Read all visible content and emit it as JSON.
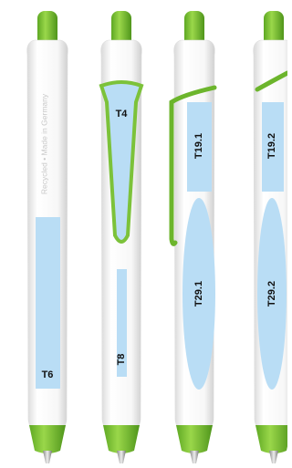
{
  "pens": [
    {
      "texts": [
        "Recycled • Made in Germany",
        "T6"
      ]
    },
    {
      "texts": [
        "T4",
        "T8"
      ]
    },
    {
      "texts": [
        "T19.1",
        "T29.1"
      ]
    },
    {
      "texts": [
        "T19.2",
        "T29.2"
      ]
    }
  ]
}
